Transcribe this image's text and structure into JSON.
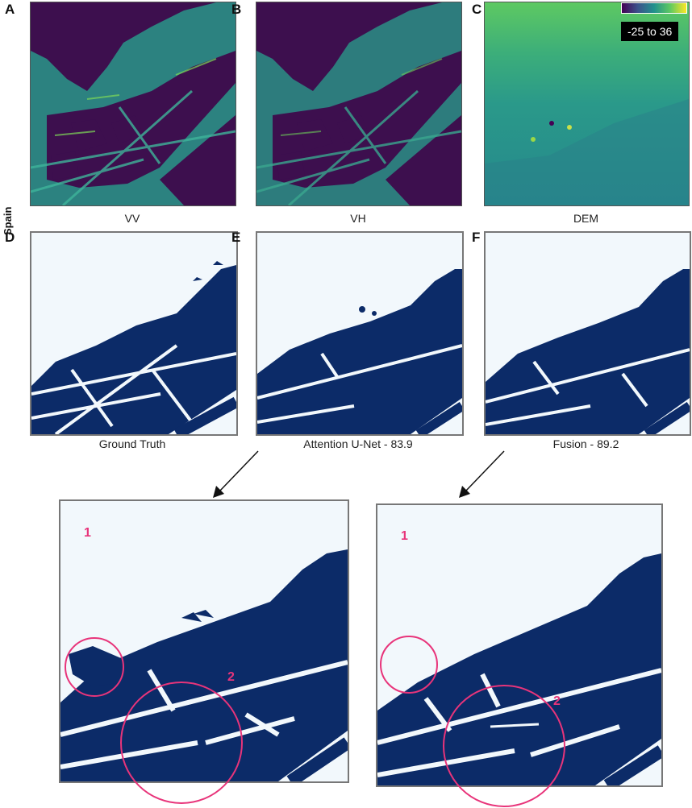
{
  "row_label": "Spain",
  "colors": {
    "sar_background": "#3d0f4e",
    "sar_land": "#2a9d8f",
    "water": "#0c2b68",
    "dry": "#f2f8fc",
    "annotation": "#e8347a",
    "dem_base": "#3a9a8a"
  },
  "panels": [
    {
      "letter": "A",
      "caption": "VV"
    },
    {
      "letter": "B",
      "caption": "VH"
    },
    {
      "letter": "C",
      "caption": "DEM"
    },
    {
      "letter": "D",
      "caption": "Ground Truth"
    },
    {
      "letter": "E",
      "caption": "Attention U-Net - 83.9"
    },
    {
      "letter": "F",
      "caption": "Fusion - 89.2"
    }
  ],
  "colorbar": {
    "range_label": "-25 to 36",
    "gradient": [
      "#440154",
      "#3b528b",
      "#21918c",
      "#5ec962",
      "#fde725"
    ]
  },
  "zoom_annotations": [
    {
      "markers": [
        "1",
        "2"
      ]
    },
    {
      "markers": [
        "1",
        "2"
      ]
    }
  ]
}
